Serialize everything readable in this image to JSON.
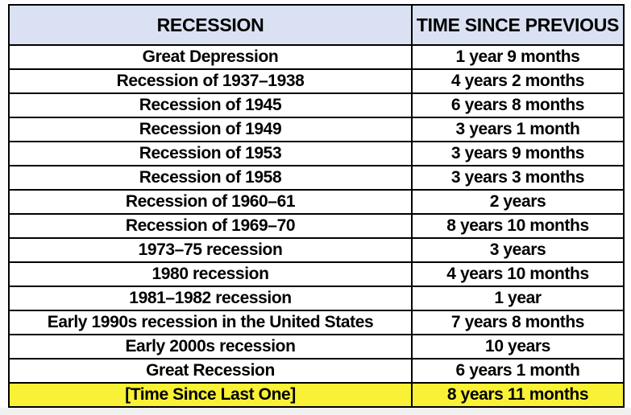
{
  "table": {
    "headers": [
      {
        "label": "RECESSION"
      },
      {
        "label": "TIME SINCE PREVIOUS"
      }
    ],
    "rows": [
      {
        "recession": "Great Depression",
        "time": "1 year 9 months"
      },
      {
        "recession": "Recession of 1937–1938",
        "time": "4 years 2 months"
      },
      {
        "recession": "Recession of 1945",
        "time": "6 years 8 months"
      },
      {
        "recession": "Recession of 1949",
        "time": "3 years 1 month"
      },
      {
        "recession": "Recession of 1953",
        "time": "3 years 9 months"
      },
      {
        "recession": "Recession of 1958",
        "time": "3 years 3 months"
      },
      {
        "recession": "Recession of 1960–61",
        "time": "2 years"
      },
      {
        "recession": "Recession of 1969–70",
        "time": "8 years 10 months"
      },
      {
        "recession": "1973–75 recession",
        "time": "3 years"
      },
      {
        "recession": "1980 recession",
        "time": "4 years 10 months"
      },
      {
        "recession": "1981–1982 recession",
        "time": "1 year"
      },
      {
        "recession": "Early 1990s recession in the United States",
        "time": "7 years 8 months"
      },
      {
        "recession": "Early 2000s recession",
        "time": "10 years"
      },
      {
        "recession": "Great Recession",
        "time": "6 years 1 month"
      },
      {
        "recession": "[Time Since Last One]",
        "time": "8 years 11 months"
      }
    ],
    "highlighted_row_index": 14
  },
  "colors": {
    "header_bg": "#d9e1f2",
    "highlight_bg": "#f8f135",
    "border": "#000000",
    "text": "#000000"
  },
  "chart_data": {
    "type": "table",
    "columns": [
      "RECESSION",
      "TIME SINCE PREVIOUS"
    ],
    "rows": [
      [
        "Great Depression",
        "1 year 9 months"
      ],
      [
        "Recession of 1937–1938",
        "4 years 2 months"
      ],
      [
        "Recession of 1945",
        "6 years 8 months"
      ],
      [
        "Recession of 1949",
        "3 years 1 month"
      ],
      [
        "Recession of 1953",
        "3 years 9 months"
      ],
      [
        "Recession of 1958",
        "3 years 3 months"
      ],
      [
        "Recession of 1960–61",
        "2 years"
      ],
      [
        "Recession of 1969–70",
        "8 years 10 months"
      ],
      [
        "1973–75 recession",
        "3 years"
      ],
      [
        "1980 recession",
        "4 years 10 months"
      ],
      [
        "1981–1982 recession",
        "1 year"
      ],
      [
        "Early 1990s recession in the United States",
        "7 years 8 months"
      ],
      [
        "Early 2000s recession",
        "10 years"
      ],
      [
        "Great Recession",
        "6 years 1 month"
      ],
      [
        "[Time Since Last One]",
        "8 years 11 months"
      ]
    ],
    "notes": "Last row highlighted yellow; header row light blue"
  }
}
